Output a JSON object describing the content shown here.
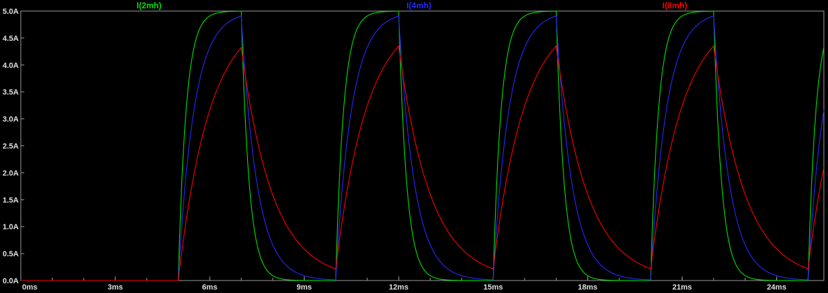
{
  "chart_data": {
    "type": "line",
    "title": "",
    "background_color": "#000000",
    "frame_color": "#9a9a9a",
    "axis_text_color": "#e0e0e0",
    "xlim": [
      0,
      25.5
    ],
    "ylim": [
      0,
      5
    ],
    "x_tick_labels": [
      "0ms",
      "3ms",
      "6ms",
      "9ms",
      "12ms",
      "15ms",
      "18ms",
      "21ms",
      "24ms"
    ],
    "x_tick_values": [
      0,
      3,
      6,
      9,
      12,
      15,
      18,
      21,
      24
    ],
    "x_minor_tick_step_ms": 1,
    "y_tick_labels": [
      "5.0A",
      "4.5A",
      "4.0A",
      "3.5A",
      "3.0A",
      "2.5A",
      "2.0A",
      "1.5A",
      "1.0A",
      "0.5A",
      "0.0A"
    ],
    "y_tick_values": [
      5.0,
      4.5,
      4.0,
      3.5,
      3.0,
      2.5,
      2.0,
      1.5,
      1.0,
      0.5,
      0.0
    ],
    "grid": false,
    "legend_position": "top",
    "series": [
      {
        "name": "I(2mh)",
        "color": "#00e400",
        "tau_ms": 0.25,
        "peak_A": 5.0
      },
      {
        "name": "I(4mh)",
        "color": "#2828ff",
        "tau_ms": 0.5,
        "peak_A": 4.9
      },
      {
        "name": "I(8mh)",
        "color": "#ff0000",
        "tau_ms": 1.0,
        "peak_A": 4.35
      }
    ],
    "waveform": {
      "description": "RL charge/discharge current pulses",
      "amplitude_A": 5,
      "start_ms": 5,
      "on_ms": 2,
      "period_ms": 5,
      "baseline_A": 0,
      "sample_step_ms": 0.02
    }
  }
}
